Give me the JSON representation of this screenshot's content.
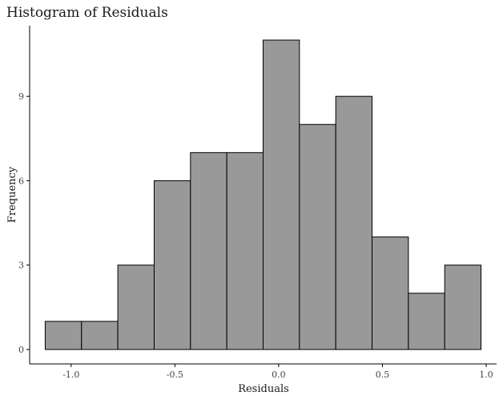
{
  "chart_data": {
    "type": "bar",
    "title": "Histogram of Residuals",
    "xlabel": "Residuals",
    "ylabel": "Frequency",
    "bin_edges": [
      -1.125,
      -0.95,
      -0.775,
      -0.6,
      -0.425,
      -0.25,
      -0.075,
      0.1,
      0.275,
      0.45,
      0.625,
      0.8,
      0.975
    ],
    "values": [
      1,
      1,
      3,
      6,
      7,
      7,
      11,
      8,
      9,
      4,
      2,
      3
    ],
    "xlim": [
      -1.2,
      1.05
    ],
    "ylim": [
      0,
      11.55
    ],
    "x_ticks": [
      -1.0,
      -0.5,
      0.0,
      0.5,
      1.0
    ],
    "x_tick_labels": [
      "-1.0",
      "-0.5",
      "0.0",
      "0.5",
      "1.0"
    ],
    "y_ticks": [
      0,
      3,
      6,
      9
    ],
    "y_tick_labels": [
      "0",
      "3",
      "6",
      "9"
    ],
    "grid": false,
    "bar_fill": "#999999",
    "bar_stroke": "#000000"
  }
}
